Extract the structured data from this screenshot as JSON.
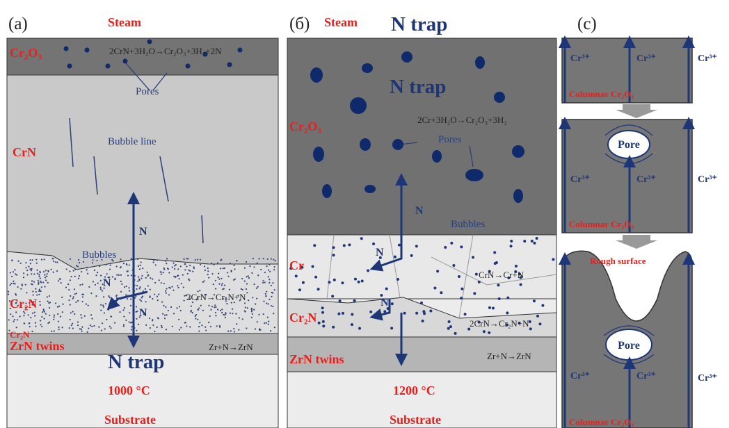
{
  "panel_a": {
    "label": "(a)",
    "steam": "Steam",
    "layer_cr2o3": "Cr₂O₃",
    "reaction_top": "2CrN+3H₂O→Cr₂O₃+3H₂+2N",
    "pores": "Pores",
    "layer_crn": "CrN",
    "bubble_line": "Bubble line",
    "n_labels": [
      "N",
      "N",
      "N"
    ],
    "bubbles": "Bubbles",
    "layer_cr2n": "Cr₂N",
    "reaction_cr2n": "2CrN→Cr₂N+N",
    "layer_cr2n_thin": "Cr₂N",
    "layer_zrn": "ZrN twins",
    "reaction_zrn": "Zr+N→ZrN",
    "n_trap": "N trap",
    "temperature": "1000 °C",
    "substrate": "Substrate"
  },
  "panel_b": {
    "label": "(б)",
    "steam": "Steam",
    "n_trap_top": "N trap",
    "n_trap": "N trap",
    "layer_cr2o3": "Cr₂O₃",
    "reaction": "2Cr+3H₂O→Cr₂O₃+3H₂",
    "pores": "Pores",
    "n_labels": [
      "N",
      "N",
      "N"
    ],
    "bubbles": "Bubbles",
    "layer_cr": "Cr",
    "reaction_cr": "CrN→Cr+N",
    "layer_cr2n": "Cr₂N",
    "reaction_cr2n": "2CrN→Cr₂N+N",
    "layer_zrn": "ZrN twins",
    "reaction_zrn": "Zr+N→ZrN",
    "temperature": "1200 °C",
    "substrate": "Substrate"
  },
  "panel_c": {
    "label": "(c)",
    "ion_labels": [
      "Cr³⁺",
      "Cr³⁺",
      "Cr³⁺",
      "Cr³⁺",
      "Cr³⁺",
      "Cr³⁺",
      "Cr³⁺",
      "Cr³⁺",
      "Cr³⁺"
    ],
    "columnar": [
      "Columnar Cr₂O₃",
      "Columnar Cr₂O₃",
      "Columnar Cr₂O₃"
    ],
    "pores": [
      "Pore",
      "Pore"
    ],
    "rough_surface": "Rough surface"
  }
}
